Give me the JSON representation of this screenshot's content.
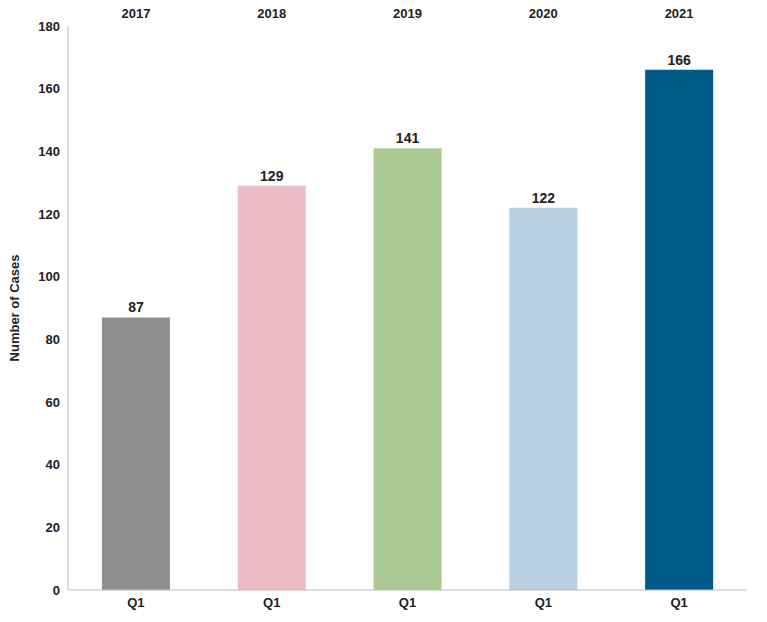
{
  "chart_data": {
    "type": "bar",
    "ylabel": "Number of Cases",
    "groups": [
      "2017",
      "2018",
      "2019",
      "2020",
      "2021"
    ],
    "categories": [
      "Q1",
      "Q1",
      "Q1",
      "Q1",
      "Q1"
    ],
    "values": [
      87,
      129,
      141,
      122,
      166
    ],
    "colors": [
      "#8e8f91",
      "#ecbcc6",
      "#abc993",
      "#b8cfdf",
      "#005a87"
    ],
    "ylim": [
      0,
      180
    ],
    "yticks": [
      0,
      20,
      40,
      60,
      80,
      100,
      120,
      140,
      160,
      180
    ],
    "grid": false,
    "data_labels": true
  }
}
